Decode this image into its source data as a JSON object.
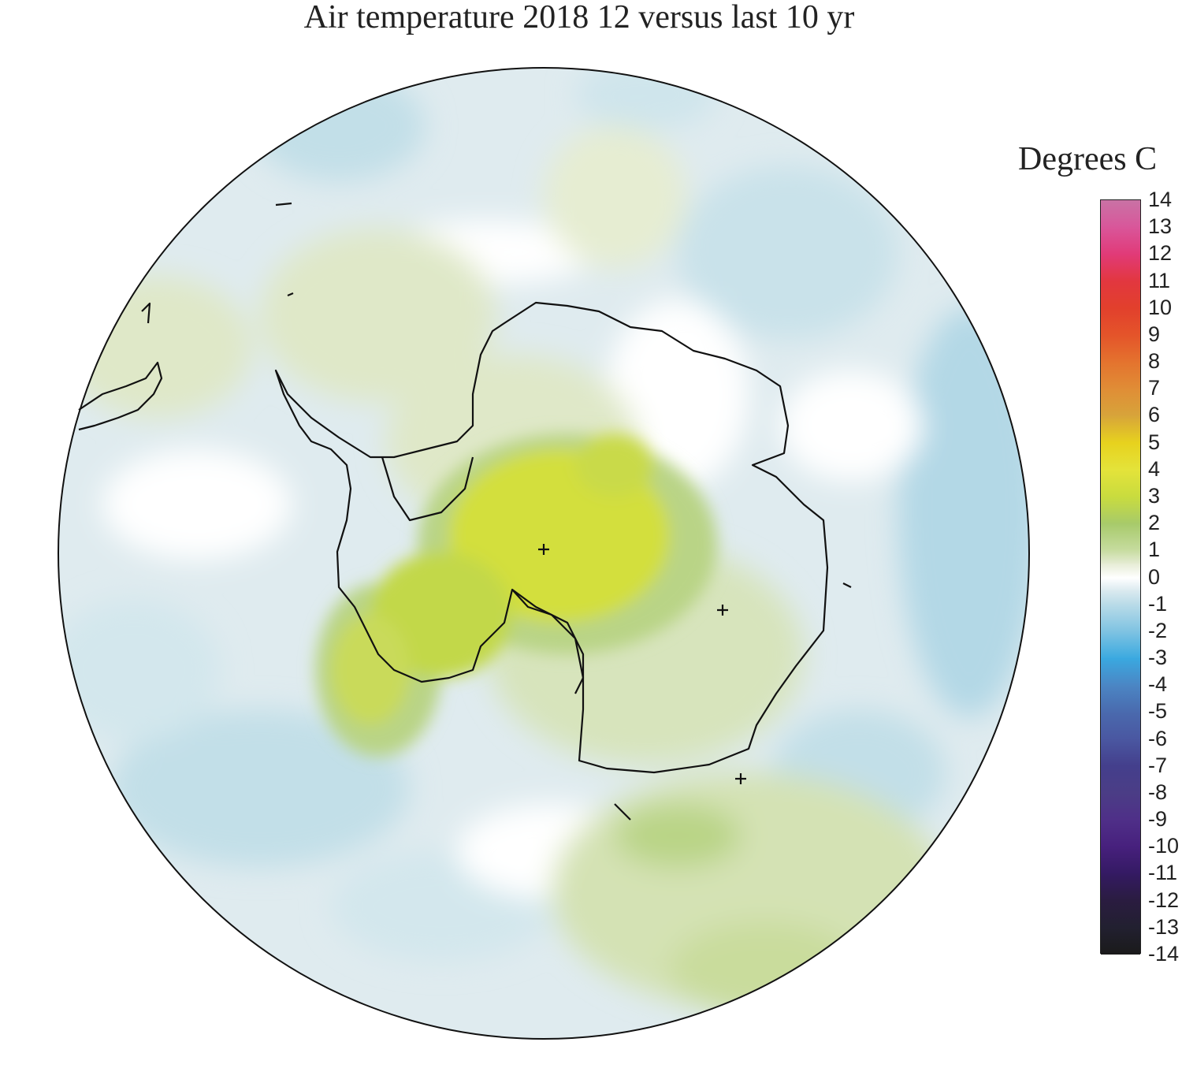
{
  "title": "Air temperature 2018 12 versus last 10 yr",
  "legend": {
    "title": "Degrees C",
    "ticks": [
      "14",
      "13",
      "12",
      "11",
      "10",
      "9",
      "8",
      "7",
      "6",
      "5",
      "4",
      "3",
      "2",
      "1",
      "0",
      "-1",
      "-2",
      "-3",
      "-4",
      "-5",
      "-6",
      "-7",
      "-8",
      "-9",
      "-10",
      "-11",
      "-12",
      "-13",
      "-14"
    ]
  },
  "colors": {
    "anomaly_neg_1": "#d6e9ee",
    "anomaly_neg_05": "#e4eef1",
    "anomaly_neg_15": "#c2dfe8",
    "anomaly_zero": "#ffffff",
    "anomaly_pos_05": "#eef2e3",
    "anomaly_pos_1": "#dfe8c8",
    "anomaly_pos_2": "#b9d486",
    "anomaly_pos_3": "#d6e23a",
    "coastline": "#111111",
    "outline": "#111111"
  },
  "map_marks": [
    "plus-marker",
    "plus-marker",
    "plus-marker"
  ]
}
